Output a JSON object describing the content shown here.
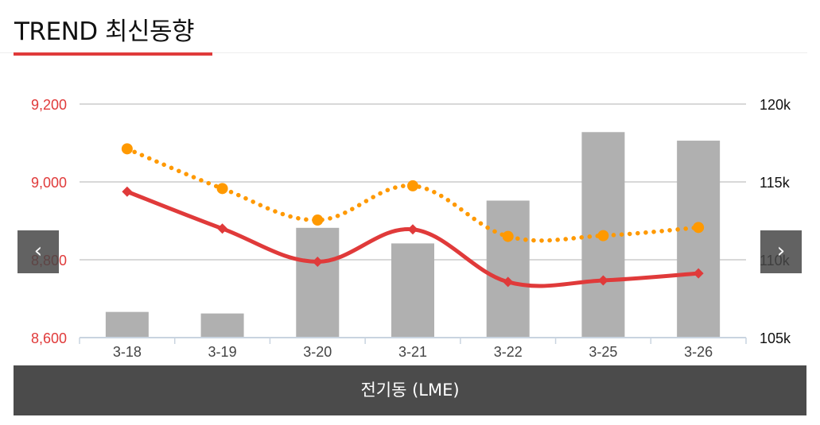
{
  "header": {
    "title": "TREND 최신동향"
  },
  "navigation": {
    "prev_icon": "‹",
    "next_icon": "›"
  },
  "caption": {
    "label": "전기동 (LME)"
  },
  "colors": {
    "price_line": "#e03a3a",
    "dotted_line": "#ff9900",
    "bars": "#b0b0b0",
    "left_axis": "#e03a3a",
    "right_axis": "#111111"
  },
  "chart_data": {
    "type": "bar",
    "categories": [
      "3-18",
      "3-19",
      "3-20",
      "3-21",
      "3-22",
      "3-25",
      "3-26"
    ],
    "y_left": {
      "ticks": [
        "8,600",
        "8,800",
        "9,000",
        "9,200"
      ],
      "range": [
        8600,
        9200
      ]
    },
    "y_right": {
      "ticks": [
        "105k",
        "110k",
        "115k",
        "120k"
      ],
      "range": [
        105000,
        120000
      ]
    },
    "grid": true,
    "legend": "none",
    "series": [
      {
        "kind": "bar",
        "axis": "right",
        "values": [
          106650,
          106550,
          112050,
          111050,
          113800,
          118200,
          117650
        ]
      },
      {
        "kind": "line",
        "axis": "left",
        "style": "solid",
        "marker": "diamond",
        "values": [
          8975,
          8880,
          8795,
          8878,
          8743,
          8747,
          8765
        ]
      },
      {
        "kind": "line",
        "axis": "left",
        "style": "dotted",
        "marker": "circle",
        "values": [
          9085,
          8983,
          8902,
          8990,
          8860,
          8862,
          8883
        ]
      }
    ]
  }
}
